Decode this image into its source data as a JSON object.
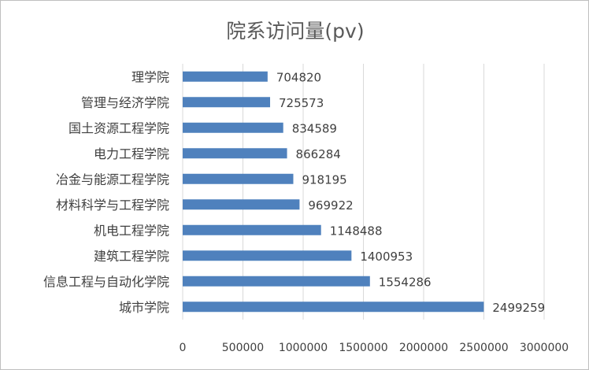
{
  "chart_data": {
    "type": "bar",
    "orientation": "horizontal",
    "title": "院系访问量(pv)",
    "categories": [
      "理学院",
      "管理与经济学院",
      "国土资源工程学院",
      "电力工程学院",
      "冶金与能源工程学院",
      "材料科学与工程学院",
      "机电工程学院",
      "建筑工程学院",
      "信息工程与自动化学院",
      "城市学院"
    ],
    "values": [
      704820,
      725573,
      834589,
      866284,
      918195,
      969922,
      1148488,
      1400953,
      1554286,
      2499259
    ],
    "data_labels": [
      "704820",
      "725573",
      "834589",
      "866284",
      "918195",
      "969922",
      "1148488",
      "1400953",
      "1554286",
      "2499259"
    ],
    "xlim": [
      0,
      3000000
    ],
    "x_ticks": [
      0,
      500000,
      1000000,
      1500000,
      2000000,
      2500000,
      3000000
    ],
    "x_tick_labels": [
      "0",
      "500000",
      "1000000",
      "1500000",
      "2000000",
      "2500000",
      "3000000"
    ],
    "grid": true,
    "bar_color": "#4f81bd",
    "grid_color": "#d9d9d9",
    "text_color": "#404040",
    "title_color": "#595959"
  }
}
